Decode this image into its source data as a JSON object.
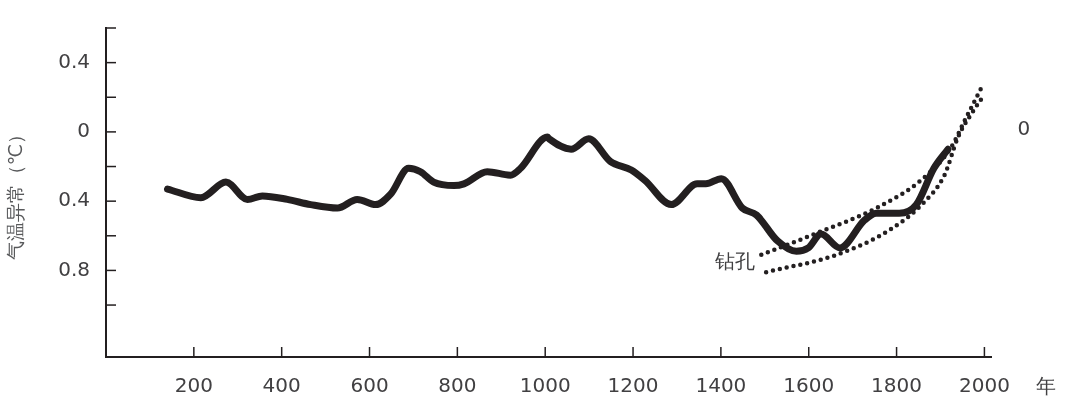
{
  "chart_data": {
    "type": "line",
    "xlabel": "年",
    "ylabel": "气温异常（℃）",
    "xlim": [
      0,
      2015
    ],
    "xticks": [
      200,
      400,
      600,
      800,
      1000,
      1200,
      1400,
      1600,
      1800,
      2000
    ],
    "ylim": [
      -1.3,
      0.6
    ],
    "yticks": [
      {
        "value": 0.6,
        "label": null
      },
      {
        "value": 0.4,
        "label": "0.4"
      },
      {
        "value": 0.2,
        "label": null
      },
      0,
      {
        "value": -0.2,
        "label": null
      },
      {
        "value": -0.4,
        "label": "0.4"
      },
      {
        "value": -0.6,
        "label": null
      },
      {
        "value": -0.8,
        "label": "0.8"
      },
      {
        "value": -1.0,
        "label": null
      }
    ],
    "grid": false,
    "legend": false,
    "marker": "none",
    "series": [
      {
        "color": "#231f20",
        "line_style": "solid",
        "x": [
          140,
          216,
          273,
          322,
          356,
          413,
          466,
          527,
          572,
          614,
          648,
          689,
          716,
          746,
          792,
          815,
          868,
          921,
          944,
          1005,
          1009,
          1059,
          1099,
          1148,
          1196,
          1227,
          1287,
          1346,
          1366,
          1401,
          1449,
          1481,
          1529,
          1572,
          1599,
          1628,
          1671,
          1727,
          1754,
          1806,
          1845,
          1885,
          1917
        ],
        "values": [
          -0.33,
          -0.38,
          -0.29,
          -0.39,
          -0.37,
          -0.39,
          -0.42,
          -0.44,
          -0.39,
          -0.42,
          -0.36,
          -0.21,
          -0.23,
          -0.29,
          -0.31,
          -0.3,
          -0.23,
          -0.25,
          -0.21,
          -0.03,
          -0.04,
          -0.1,
          -0.04,
          -0.17,
          -0.22,
          -0.28,
          -0.42,
          -0.3,
          -0.3,
          -0.27,
          -0.44,
          -0.48,
          -0.63,
          -0.69,
          -0.67,
          -0.59,
          -0.67,
          -0.51,
          -0.47,
          -0.47,
          -0.42,
          -0.21,
          -0.1
        ]
      },
      {
        "color": "#231f20",
        "line_style": "dotted",
        "x": [
          1492,
          1623,
          1754,
          1860,
          1924,
          1956,
          1996
        ],
        "values": [
          -0.71,
          -0.58,
          -0.44,
          -0.27,
          -0.09,
          0.07,
          0.27
        ]
      },
      {
        "color": "#231f20",
        "line_style": "dotted",
        "x": [
          1503,
          1663,
          1782,
          1861,
          1909,
          1940,
          1977,
          1993
        ],
        "values": [
          -0.81,
          -0.71,
          -0.57,
          -0.41,
          -0.25,
          -0.03,
          0.13,
          0.19
        ]
      }
    ],
    "annotations": [
      "钻孔",
      "0"
    ]
  }
}
